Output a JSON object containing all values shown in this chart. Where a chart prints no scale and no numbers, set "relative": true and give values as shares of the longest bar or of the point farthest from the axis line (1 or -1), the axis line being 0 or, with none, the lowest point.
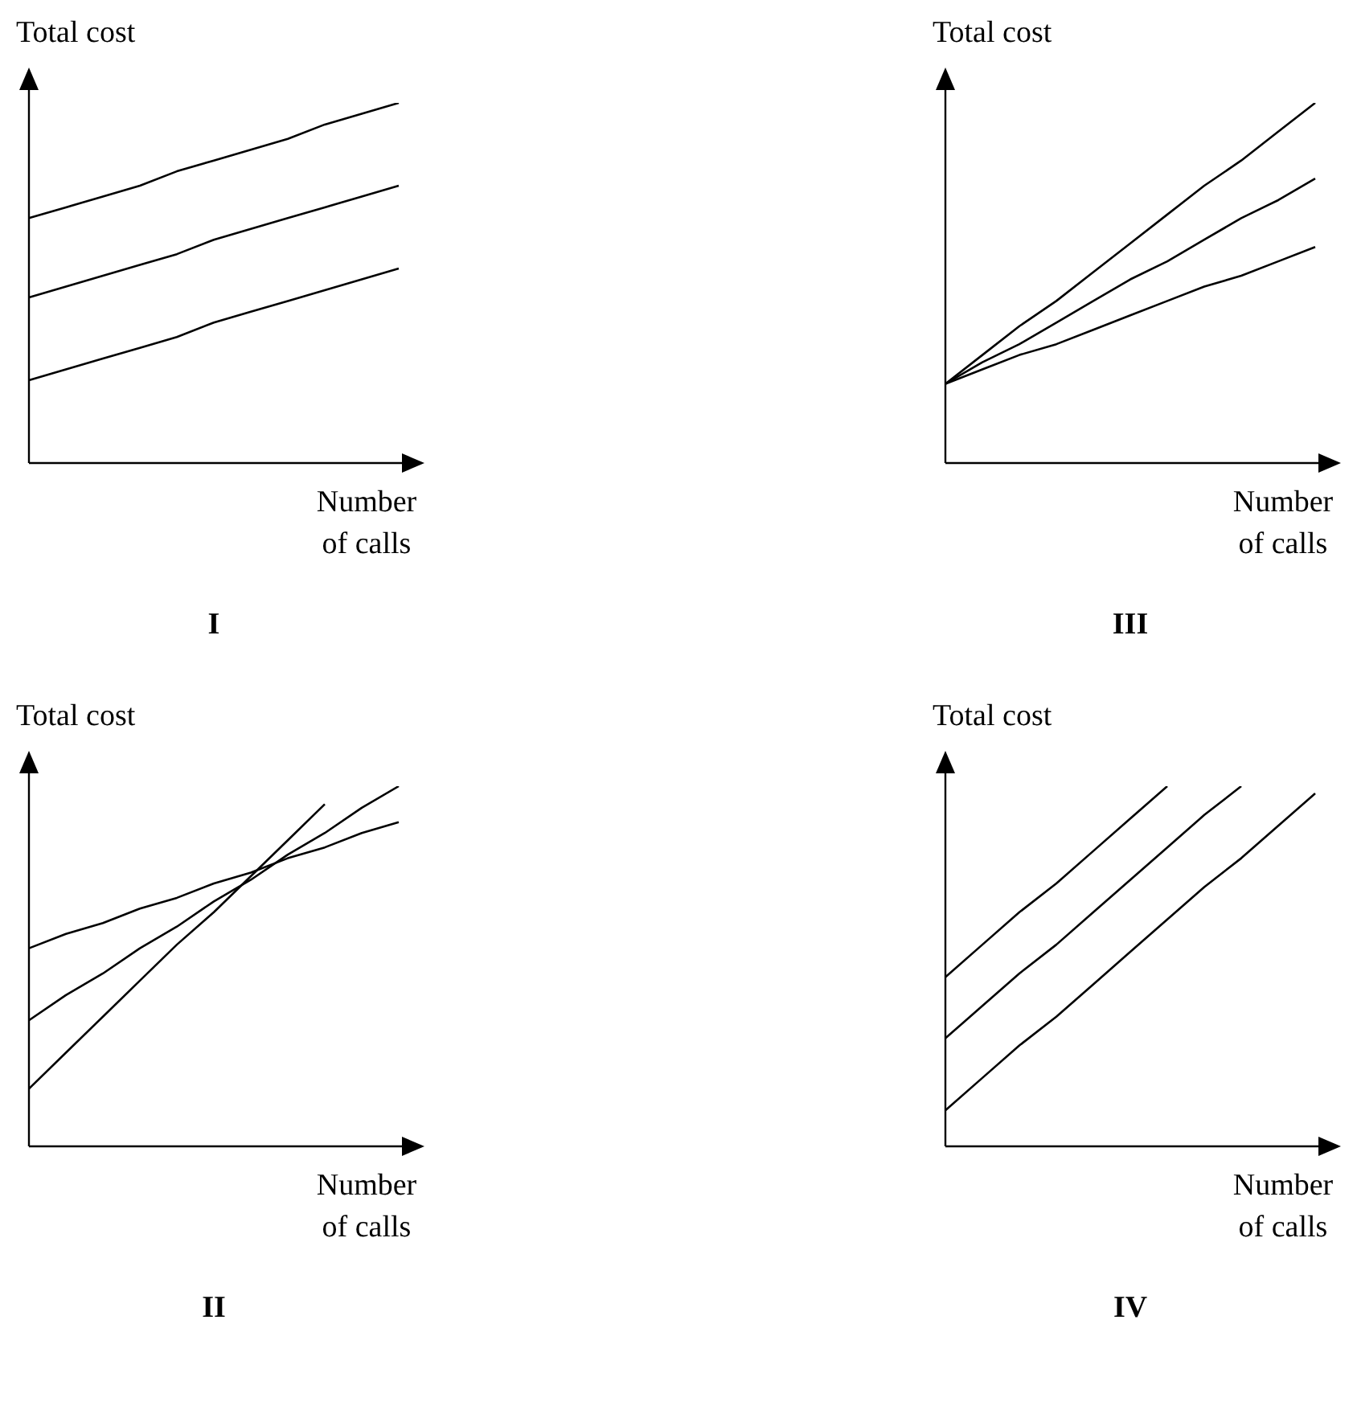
{
  "chart_data": [
    {
      "type": "line",
      "title": "I",
      "xlabel": "Number of calls",
      "ylabel": "Total cost",
      "relative": true,
      "marker": "none",
      "categories": [
        null,
        null,
        null,
        null,
        null,
        null,
        null,
        null,
        null,
        null,
        null
      ],
      "series": [
        {
          "color": "#000000",
          "values": [
            0.68,
            0.71,
            0.74,
            0.77,
            0.81,
            0.84,
            0.87,
            0.9,
            0.94,
            0.97,
            1
          ]
        },
        {
          "color": "#000000",
          "values": [
            0.46,
            0.49,
            0.52,
            0.55,
            0.58,
            0.62,
            0.65,
            0.68,
            0.71,
            0.74,
            0.77
          ]
        },
        {
          "color": "#000000",
          "values": [
            0.23,
            0.26,
            0.29,
            0.32,
            0.35,
            0.39,
            0.42,
            0.45,
            0.48,
            0.51,
            0.54
          ]
        }
      ]
    },
    {
      "type": "line",
      "title": "III",
      "xlabel": "Number of calls",
      "ylabel": "Total cost",
      "relative": true,
      "marker": "none",
      "categories": [
        null,
        null,
        null,
        null,
        null,
        null,
        null,
        null,
        null,
        null,
        null
      ],
      "series": [
        {
          "color": "#000000",
          "values": [
            0.22,
            0.3,
            0.38,
            0.45,
            0.53,
            0.61,
            0.69,
            0.77,
            0.84,
            0.92,
            1
          ]
        },
        {
          "color": "#000000",
          "values": [
            0.22,
            0.28,
            0.33,
            0.39,
            0.45,
            0.51,
            0.56,
            0.62,
            0.68,
            0.73,
            0.79
          ]
        },
        {
          "color": "#000000",
          "values": [
            0.22,
            0.26,
            0.3,
            0.33,
            0.37,
            0.41,
            0.45,
            0.49,
            0.52,
            0.56,
            0.6
          ]
        }
      ]
    },
    {
      "type": "line",
      "title": "II",
      "xlabel": "Number of calls",
      "ylabel": "Total cost",
      "relative": true,
      "marker": "none",
      "categories": [
        null,
        null,
        null,
        null,
        null,
        null,
        null,
        null,
        null,
        null,
        null
      ],
      "series": [
        {
          "color": "#000000",
          "values": [
            0.55,
            0.59,
            0.62,
            0.66,
            0.69,
            0.73,
            0.76,
            0.8,
            0.83,
            0.87,
            0.9
          ]
        },
        {
          "color": "#000000",
          "values": [
            0.35,
            0.42,
            0.48,
            0.55,
            0.61,
            0.68,
            0.74,
            0.81,
            0.87,
            0.94,
            1
          ]
        },
        {
          "color": "#000000",
          "values": [
            0.16,
            0.26,
            0.36,
            0.46,
            0.56,
            0.65,
            0.75,
            0.85,
            0.95,
            null,
            null
          ]
        }
      ]
    },
    {
      "type": "line",
      "title": "IV",
      "xlabel": "Number of calls",
      "ylabel": "Total cost",
      "relative": true,
      "marker": "none",
      "categories": [
        null,
        null,
        null,
        null,
        null,
        null,
        null,
        null,
        null,
        null,
        null
      ],
      "series": [
        {
          "color": "#000000",
          "values": [
            0.47,
            0.56,
            0.65,
            0.73,
            0.82,
            0.91,
            1,
            null,
            null,
            null,
            null
          ]
        },
        {
          "color": "#000000",
          "values": [
            0.3,
            0.39,
            0.48,
            0.56,
            0.65,
            0.74,
            0.83,
            0.92,
            1,
            null,
            null
          ]
        },
        {
          "color": "#000000",
          "values": [
            0.1,
            0.19,
            0.28,
            0.36,
            0.45,
            0.54,
            0.63,
            0.72,
            0.8,
            0.89,
            0.98
          ]
        }
      ]
    }
  ]
}
